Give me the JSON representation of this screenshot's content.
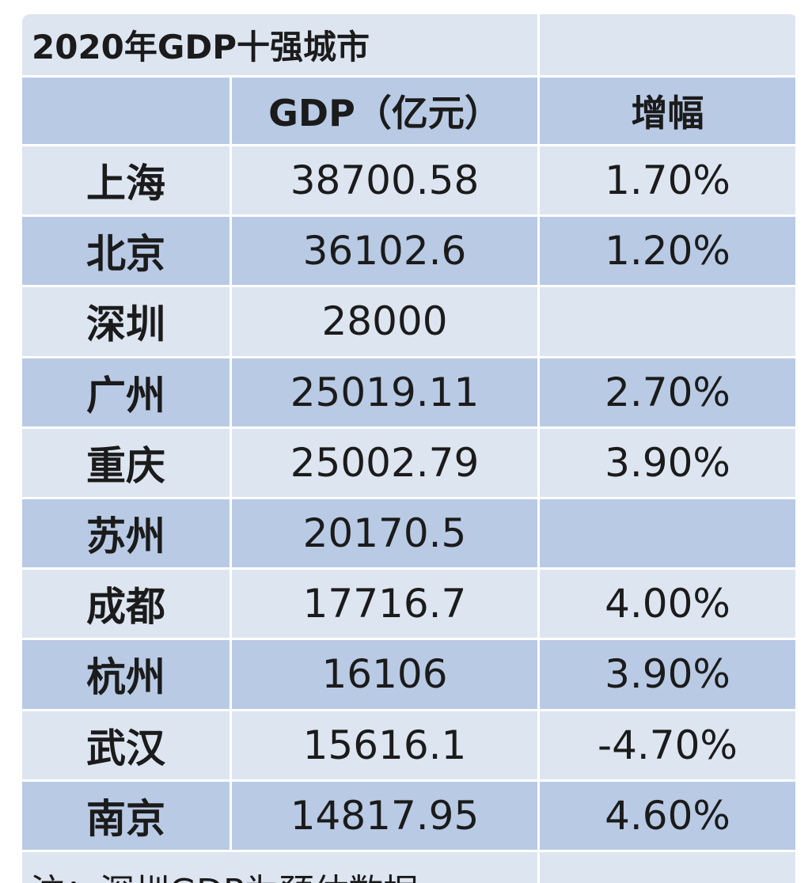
{
  "table": {
    "title": "2020年GDP十强城市",
    "header": [
      null,
      "GDP（亿元）",
      "增幅"
    ],
    "rows": [
      [
        "上海",
        "38700.58",
        "1.70%"
      ],
      [
        "北京",
        "36102.6",
        "1.20%"
      ],
      [
        "深圳",
        "28000",
        null
      ],
      [
        "广州",
        "25019.11",
        "2.70%"
      ],
      [
        "重庆",
        "25002.79",
        "3.90%"
      ],
      [
        "苏州",
        "20170.5",
        null
      ],
      [
        "成都",
        "17716.7",
        "4.00%"
      ],
      [
        "杭州",
        "16106",
        "3.90%"
      ],
      [
        "武汉",
        "15616.1",
        "-4.70%"
      ],
      [
        "南京",
        "14817.95",
        "4.60%"
      ]
    ],
    "note": "注：深圳GDP为预估数据"
  }
}
